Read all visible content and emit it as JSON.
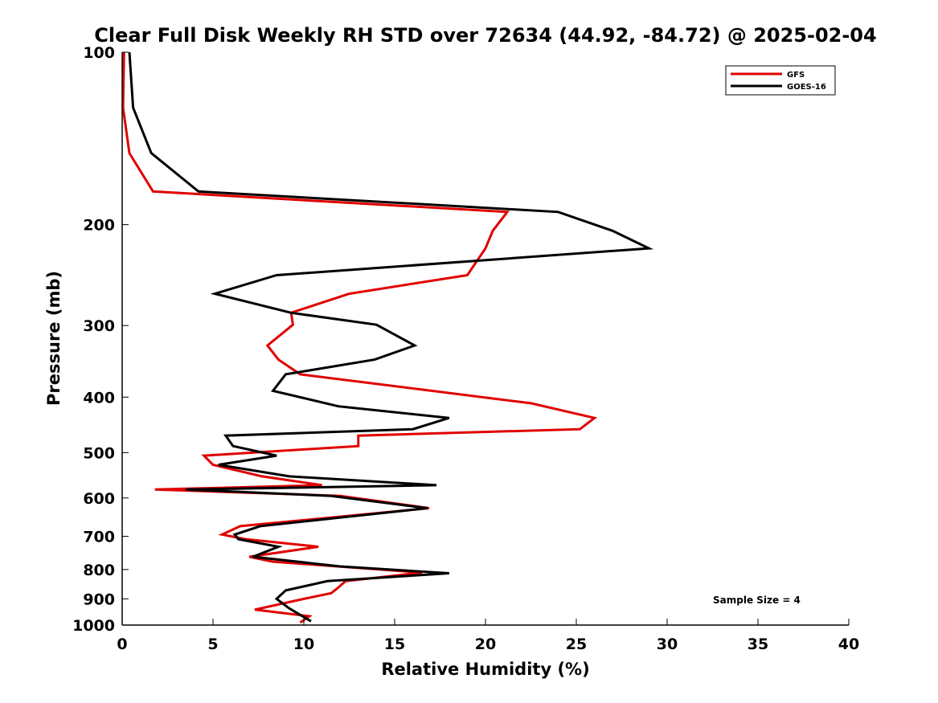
{
  "chart_data": {
    "type": "line",
    "title": "Clear Full Disk Weekly RH STD over 72634 (44.92, -84.72) @ 2025-02-04",
    "xlabel": "Relative Humidity (%)",
    "ylabel": "Pressure (mb)",
    "xlim": [
      0,
      40
    ],
    "ylim": [
      100,
      1000
    ],
    "y_scale": "log",
    "y_reversed": true,
    "x_ticks": [
      0,
      5,
      10,
      15,
      20,
      25,
      30,
      35,
      40
    ],
    "y_ticks": [
      100,
      200,
      300,
      400,
      500,
      600,
      700,
      800,
      900,
      1000
    ],
    "grid": false,
    "legend_position": "top-right",
    "annotation": "Sample Size = 4",
    "series": [
      {
        "name": "GFS",
        "color": "#e00000",
        "values": [
          [
            0.1,
            100
          ],
          [
            0.05,
            125
          ],
          [
            0.4,
            150
          ],
          [
            1.7,
            175
          ],
          [
            21.2,
            190
          ],
          [
            20.4,
            205
          ],
          [
            20.0,
            220
          ],
          [
            19.0,
            245
          ],
          [
            12.5,
            264
          ],
          [
            9.3,
            285
          ],
          [
            9.4,
            299
          ],
          [
            8.0,
            325
          ],
          [
            8.6,
            344
          ],
          [
            9.8,
            365
          ],
          [
            22.5,
            410
          ],
          [
            26.0,
            435
          ],
          [
            25.2,
            455
          ],
          [
            13.0,
            467
          ],
          [
            13.0,
            487
          ],
          [
            4.5,
            506
          ],
          [
            5.0,
            525
          ],
          [
            7.7,
            550
          ],
          [
            11.0,
            570
          ],
          [
            1.8,
            580
          ],
          [
            12.0,
            595
          ],
          [
            16.9,
            625
          ],
          [
            6.5,
            672
          ],
          [
            5.5,
            695
          ],
          [
            6.8,
            708
          ],
          [
            10.8,
            730
          ],
          [
            7.0,
            760
          ],
          [
            8.3,
            775
          ],
          [
            16.5,
            810
          ],
          [
            12.3,
            838
          ],
          [
            11.8,
            865
          ],
          [
            11.5,
            880
          ],
          [
            10.0,
            900
          ],
          [
            7.3,
            940
          ],
          [
            10.3,
            965
          ],
          [
            9.8,
            990
          ]
        ]
      },
      {
        "name": "GOES-16",
        "color": "#000000",
        "values": [
          [
            0.4,
            100
          ],
          [
            0.6,
            125
          ],
          [
            1.6,
            150
          ],
          [
            4.2,
            175
          ],
          [
            24.0,
            190
          ],
          [
            27.0,
            205
          ],
          [
            29.0,
            220
          ],
          [
            8.5,
            245
          ],
          [
            5.1,
            264
          ],
          [
            9.3,
            285
          ],
          [
            14.0,
            299
          ],
          [
            16.1,
            325
          ],
          [
            13.9,
            344
          ],
          [
            9.0,
            365
          ],
          [
            8.3,
            390
          ],
          [
            11.9,
            415
          ],
          [
            18.0,
            435
          ],
          [
            16.0,
            455
          ],
          [
            5.7,
            467
          ],
          [
            6.1,
            487
          ],
          [
            8.5,
            506
          ],
          [
            5.3,
            525
          ],
          [
            9.2,
            550
          ],
          [
            17.3,
            570
          ],
          [
            3.5,
            580
          ],
          [
            11.5,
            595
          ],
          [
            16.8,
            625
          ],
          [
            7.6,
            672
          ],
          [
            6.2,
            695
          ],
          [
            6.4,
            708
          ],
          [
            8.6,
            730
          ],
          [
            7.2,
            760
          ],
          [
            12.0,
            790
          ],
          [
            18.0,
            812
          ],
          [
            11.3,
            838
          ],
          [
            9.0,
            870
          ],
          [
            8.5,
            900
          ],
          [
            9.2,
            935
          ],
          [
            10.4,
            985
          ]
        ]
      }
    ]
  }
}
